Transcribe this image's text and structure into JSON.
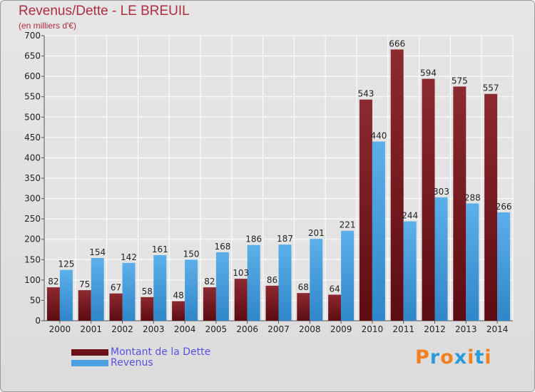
{
  "title": "Revenus/Dette - LE BREUIL",
  "subtitle": "(en milliers d'€)",
  "logo": {
    "letters": [
      "P",
      "r",
      "o",
      "x",
      "i",
      "t",
      "i"
    ],
    "colors": [
      "#f08020",
      "#2a9ad8",
      "#f08020",
      "#2a9ad8",
      "#f08020",
      "#2a9ad8",
      "#f08020"
    ]
  },
  "colors": {
    "dette": "#7c1c24",
    "revenus": "#4aa0e0"
  },
  "chart_data": {
    "type": "bar",
    "categories": [
      "2000",
      "2001",
      "2002",
      "2003",
      "2004",
      "2005",
      "2006",
      "2007",
      "2008",
      "2009",
      "2010",
      "2011",
      "2012",
      "2013",
      "2014"
    ],
    "series": [
      {
        "name": "Montant de la Dette",
        "values": [
          82,
          75,
          67,
          58,
          48,
          82,
          103,
          86,
          68,
          64,
          543,
          666,
          594,
          575,
          557
        ]
      },
      {
        "name": "Revenus",
        "values": [
          125,
          154,
          142,
          161,
          150,
          168,
          186,
          187,
          201,
          221,
          440,
          244,
          303,
          288,
          266
        ]
      }
    ],
    "ylim": [
      0,
      700
    ],
    "yticks": [
      0,
      50,
      100,
      150,
      200,
      250,
      300,
      350,
      400,
      450,
      500,
      550,
      600,
      650,
      700
    ],
    "grid": true,
    "legend": "bottom-left"
  }
}
